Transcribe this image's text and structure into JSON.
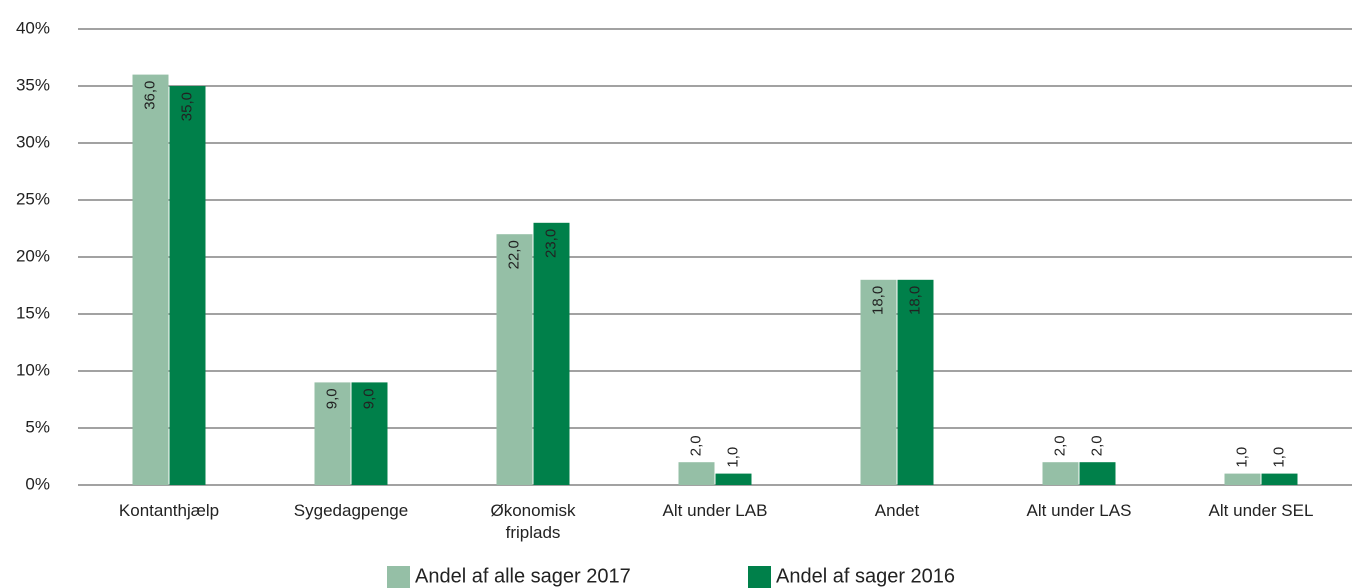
{
  "chart_data": {
    "type": "bar",
    "categories": [
      "Kontanthjælp",
      "Sygedagpenge",
      "Økonomisk friplads",
      "Alt under LAB",
      "Andet",
      "Alt under LAS",
      "Alt under SEL"
    ],
    "series": [
      {
        "name": "Andel af alle sager 2017",
        "color": "#95bfa6",
        "values": [
          36,
          9,
          22,
          2,
          18,
          2,
          1
        ],
        "value_labels": [
          "36,0",
          "9,0",
          "22,0",
          "2,0",
          "18,0",
          "2,0",
          "1,0"
        ]
      },
      {
        "name": "Andel af sager 2016",
        "color": "#00804a",
        "values": [
          35,
          9,
          23,
          1,
          18,
          2,
          1
        ],
        "value_labels": [
          "35,0",
          "9,0",
          "23,0",
          "1,0",
          "18,0",
          "2,0",
          "1,0"
        ]
      }
    ],
    "ylim": [
      0,
      40
    ],
    "yticks": [
      {
        "value": 0,
        "label": "0%"
      },
      {
        "value": 5,
        "label": "5%"
      },
      {
        "value": 10,
        "label": "10%"
      },
      {
        "value": 15,
        "label": "15%"
      },
      {
        "value": 20,
        "label": "20%"
      },
      {
        "value": 25,
        "label": "25%"
      },
      {
        "value": 30,
        "label": "30%"
      },
      {
        "value": 35,
        "label": "35%"
      },
      {
        "value": 40,
        "label": "40%"
      }
    ],
    "grid": true,
    "legend": "bottom"
  }
}
